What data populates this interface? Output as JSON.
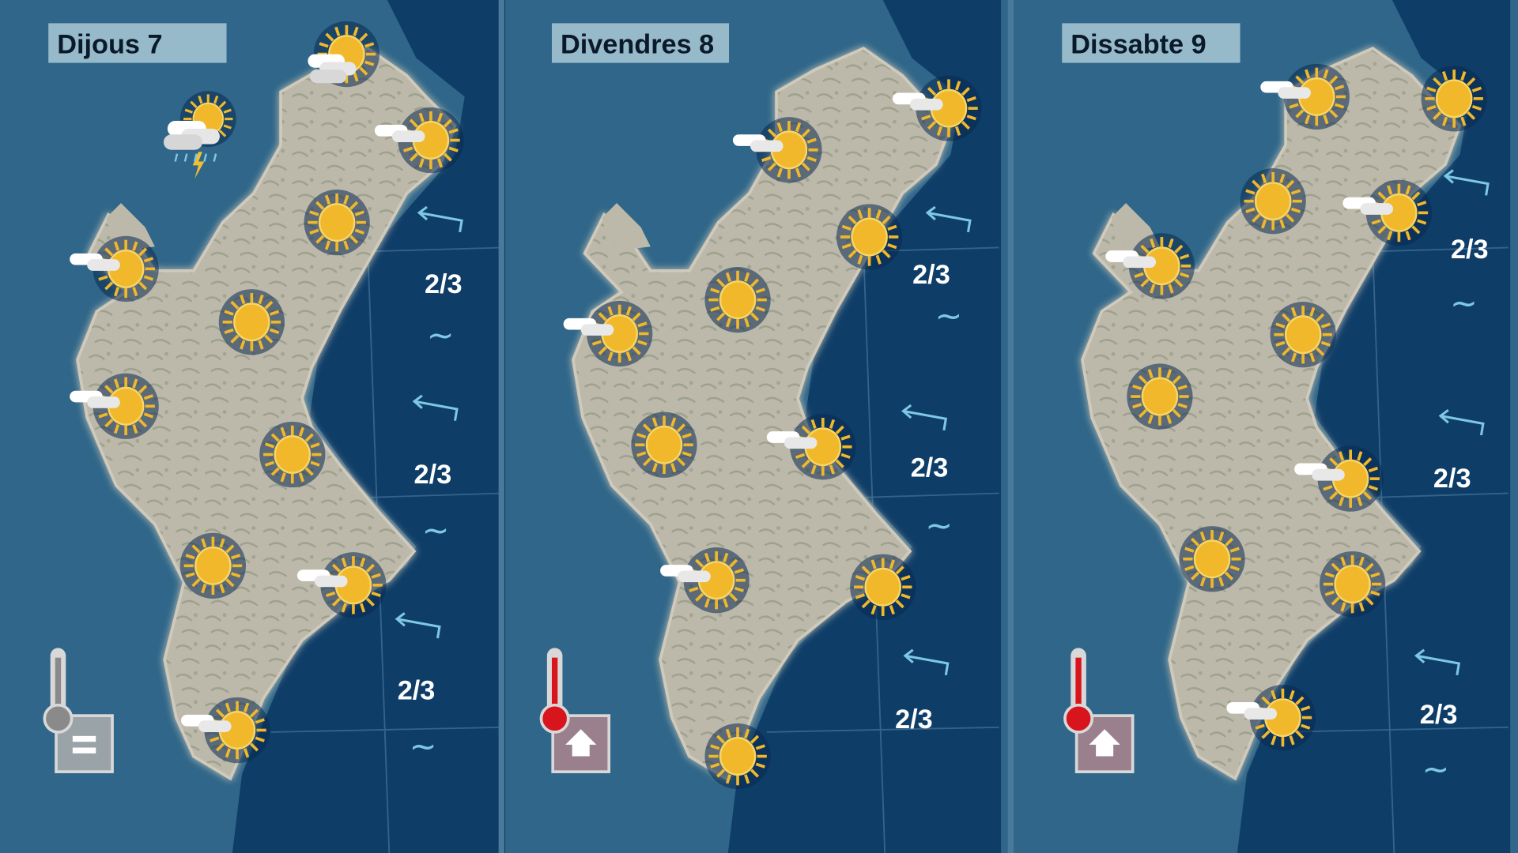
{
  "panels": [
    {
      "title": "Dijous 7",
      "temperature_trend": "stable",
      "temperature_icon": "thermometer-grey-equal-icon",
      "icons": [
        "storm",
        "cloudy-sun",
        "sun-cloud",
        "sun",
        "sun-cloud",
        "sun",
        "sun-cloud",
        "sun",
        "sun",
        "sun-cloud",
        "sun-cloud"
      ],
      "sea": [
        {
          "wave_height": "2/3",
          "wind_arrow": "wind-arrow-icon",
          "state": "~"
        },
        {
          "wave_height": "2/3",
          "wind_arrow": "wind-arrow-icon",
          "state": "~"
        },
        {
          "wave_height": "2/3",
          "wind_arrow": "wind-arrow-icon",
          "state": "~"
        }
      ]
    },
    {
      "title": "Divendres 8",
      "temperature_trend": "rising",
      "temperature_icon": "thermometer-red-up-icon",
      "icons": [
        "sun-cloud",
        "sun-cloud",
        "sun",
        "sun",
        "sun-cloud",
        "sun",
        "sun-cloud",
        "sun-cloud",
        "sun",
        "sun"
      ],
      "sea": [
        {
          "wave_height": "2/3",
          "wind_arrow": "wind-arrow-icon",
          "state": "~"
        },
        {
          "wave_height": "2/3",
          "wind_arrow": "wind-arrow-icon",
          "state": "~"
        },
        {
          "wave_height": "2/3",
          "wind_arrow": "wind-arrow-icon",
          "state": ""
        }
      ]
    },
    {
      "title": "Dissabte 9",
      "temperature_trend": "rising",
      "temperature_icon": "thermometer-red-up-icon",
      "icons": [
        "sun-cloud",
        "sun",
        "sun",
        "sun-cloud",
        "sun-cloud",
        "sun",
        "sun",
        "sun-cloud",
        "sun",
        "sun",
        "sun-cloud"
      ],
      "sea": [
        {
          "wave_height": "2/3",
          "wind_arrow": "wind-arrow-icon",
          "state": "~"
        },
        {
          "wave_height": "2/3",
          "wind_arrow": "wind-arrow-icon",
          "state": ""
        },
        {
          "wave_height": "2/3",
          "wind_arrow": "wind-arrow-icon",
          "state": "~"
        }
      ]
    }
  ],
  "colors": {
    "land_sea": "#2f6689",
    "deep_sea": "#0e3d68",
    "land": "#b9b6a8",
    "sun": "#f0b82a",
    "sea_text": "#ffffff",
    "wind": "#7ec8e3",
    "thermo_red": "#d8141c",
    "thermo_grey": "#9a9a9a"
  }
}
